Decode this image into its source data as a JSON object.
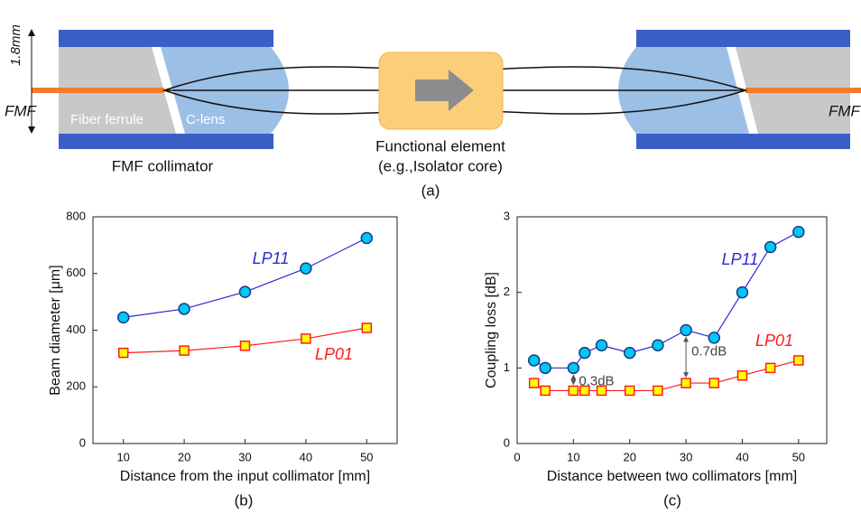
{
  "diagram": {
    "thickness_label": "1.8mm",
    "fiber_left": "FMF",
    "fiber_right": "FMF",
    "ferrule_label": "Fiber ferrule",
    "lens_label": "C-lens",
    "collimator_label": "FMF collimator",
    "element_label": "Functional element",
    "element_note": "(e.g.,Isolator core)",
    "panel_label": "(a)"
  },
  "chart_data": [
    {
      "type": "line",
      "panel_label": "(b)",
      "x_label": "Distance from the input collimator [mm]",
      "y_label": "Beam diameter [μm]",
      "x": [
        10,
        20,
        30,
        40,
        50
      ],
      "series": [
        {
          "name": "LP11",
          "color": "#2a2ad0",
          "marker_color": "#00c8f5",
          "marker": "circle",
          "values": [
            445,
            475,
            535,
            618,
            725
          ]
        },
        {
          "name": "LP01",
          "color": "#ff1a1a",
          "marker_color": "#ffff00",
          "marker": "square",
          "values": [
            320,
            328,
            345,
            370,
            408
          ]
        }
      ],
      "xlim": [
        5,
        55
      ],
      "xticks": [
        10,
        20,
        30,
        40,
        50
      ],
      "ylim": [
        0,
        800
      ],
      "yticks": [
        0,
        200,
        400,
        600,
        800
      ]
    },
    {
      "type": "line",
      "panel_label": "(c)",
      "x_label": "Distance between two collimators [mm]",
      "y_label": "Coupling loss [dB]",
      "x": [
        3,
        5,
        10,
        12,
        15,
        20,
        25,
        30,
        35,
        40,
        45,
        50
      ],
      "series": [
        {
          "name": "LP11",
          "color": "#2a2ad0",
          "marker_color": "#00c8f5",
          "marker": "circle",
          "values": [
            1.1,
            1.0,
            1.0,
            1.2,
            1.3,
            1.2,
            1.3,
            1.5,
            1.4,
            2.0,
            2.6,
            2.8
          ]
        },
        {
          "name": "LP01",
          "color": "#ff1a1a",
          "marker_color": "#ffff00",
          "marker": "square",
          "values": [
            0.8,
            0.7,
            0.7,
            0.7,
            0.7,
            0.7,
            0.7,
            0.8,
            0.8,
            0.9,
            1.0,
            1.1
          ]
        }
      ],
      "annotations": [
        "0.3dB",
        "0.7dB"
      ],
      "xlim": [
        0,
        55
      ],
      "xticks": [
        0,
        10,
        20,
        30,
        40,
        50
      ],
      "ylim": [
        0,
        3
      ],
      "yticks": [
        0,
        1,
        2,
        3
      ]
    }
  ]
}
